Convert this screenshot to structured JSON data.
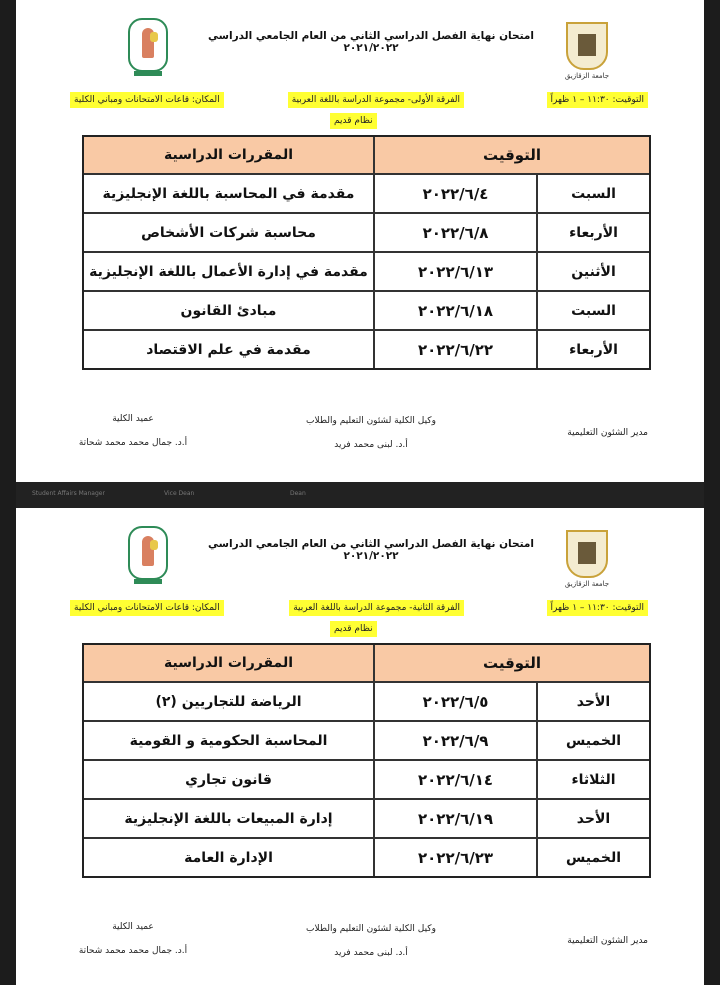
{
  "pages": [
    {
      "title": "امتحان نهاية الفصل الدراسي الثاني من العام الجامعي الدراسي ٢٠٢١/٢٠٢٢",
      "university_logo_caption": "جامعة الزقازيق",
      "time": "التوقيت: ١١:٣٠ – ١ ظهراً",
      "group": "الفرقة الأولى- مجموعة الدراسة باللغة العربية",
      "system": "نظام قديم",
      "place": "المكان: قاعات الامتحانات ومباني الكلية",
      "table": {
        "header_time": "التوقيت",
        "header_courses": "المقررات الدراسية",
        "rows": [
          {
            "day": "السبت",
            "date": "٢٠٢٢/٦/٤",
            "course": "مقدمة في المحاسبة باللغة الإنجليزية"
          },
          {
            "day": "الأربعاء",
            "date": "٢٠٢٢/٦/٨",
            "course": "محاسبة شركات الأشخاص"
          },
          {
            "day": "الأثنين",
            "date": "٢٠٢٢/٦/١٣",
            "course": "مقدمة في إدارة الأعمال باللغة الإنجليزية"
          },
          {
            "day": "السبت",
            "date": "٢٠٢٢/٦/١٨",
            "course": "مبادئ القانون"
          },
          {
            "day": "الأربعاء",
            "date": "٢٠٢٢/٦/٢٢",
            "course": "مقدمة في علم الاقتصاد"
          }
        ]
      },
      "signatures": {
        "manager": "مدير الشئون التعليمية",
        "vice_title": "وكيل الكلية لشئون التعليم والطلاب",
        "vice_name": "أ.د. لبنى محمد فريد",
        "dean_title": "عميد الكلية",
        "dean_name": "أ.د. جمال محمد محمد شحاتة"
      }
    },
    {
      "title": "امتحان نهاية الفصل الدراسي الثاني من العام الجامعي الدراسي ٢٠٢١/٢٠٢٢",
      "university_logo_caption": "جامعة الزقازيق",
      "time": "التوقيت: ١١:٣٠ – ١ ظهراً",
      "group": "الفرقة الثانية- مجموعة الدراسة باللغة العربية",
      "system": "نظام قديم",
      "place": "المكان: قاعات الامتحانات ومباني الكلية",
      "table": {
        "header_time": "التوقيت",
        "header_courses": "المقررات الدراسية",
        "rows": [
          {
            "day": "الأحد",
            "date": "٢٠٢٢/٦/٥",
            "course": "الرياضة للتجاريين (٢)"
          },
          {
            "day": "الخميس",
            "date": "٢٠٢٢/٦/٩",
            "course": "المحاسبة الحكومية و القومية"
          },
          {
            "day": "الثلاثاء",
            "date": "٢٠٢٢/٦/١٤",
            "course": "قانون تجاري"
          },
          {
            "day": "الأحد",
            "date": "٢٠٢٢/٦/١٩",
            "course": "إدارة المبيعات باللغة الإنجليزية"
          },
          {
            "day": "الخميس",
            "date": "٢٠٢٢/٦/٢٣",
            "course": "الإدارة العامة"
          }
        ]
      },
      "signatures": {
        "manager": "مدير الشئون التعليمية",
        "vice_title": "وكيل الكلية لشئون التعليم والطلاب",
        "vice_name": "أ.د. لبنى محمد فريد",
        "dean_title": "عميد الكلية",
        "dean_name": "أ.د. جمال محمد محمد شحاتة"
      }
    }
  ],
  "separator": {
    "labels": [
      "Student Affairs Manager",
      "Vice Dean",
      "Dean"
    ]
  }
}
